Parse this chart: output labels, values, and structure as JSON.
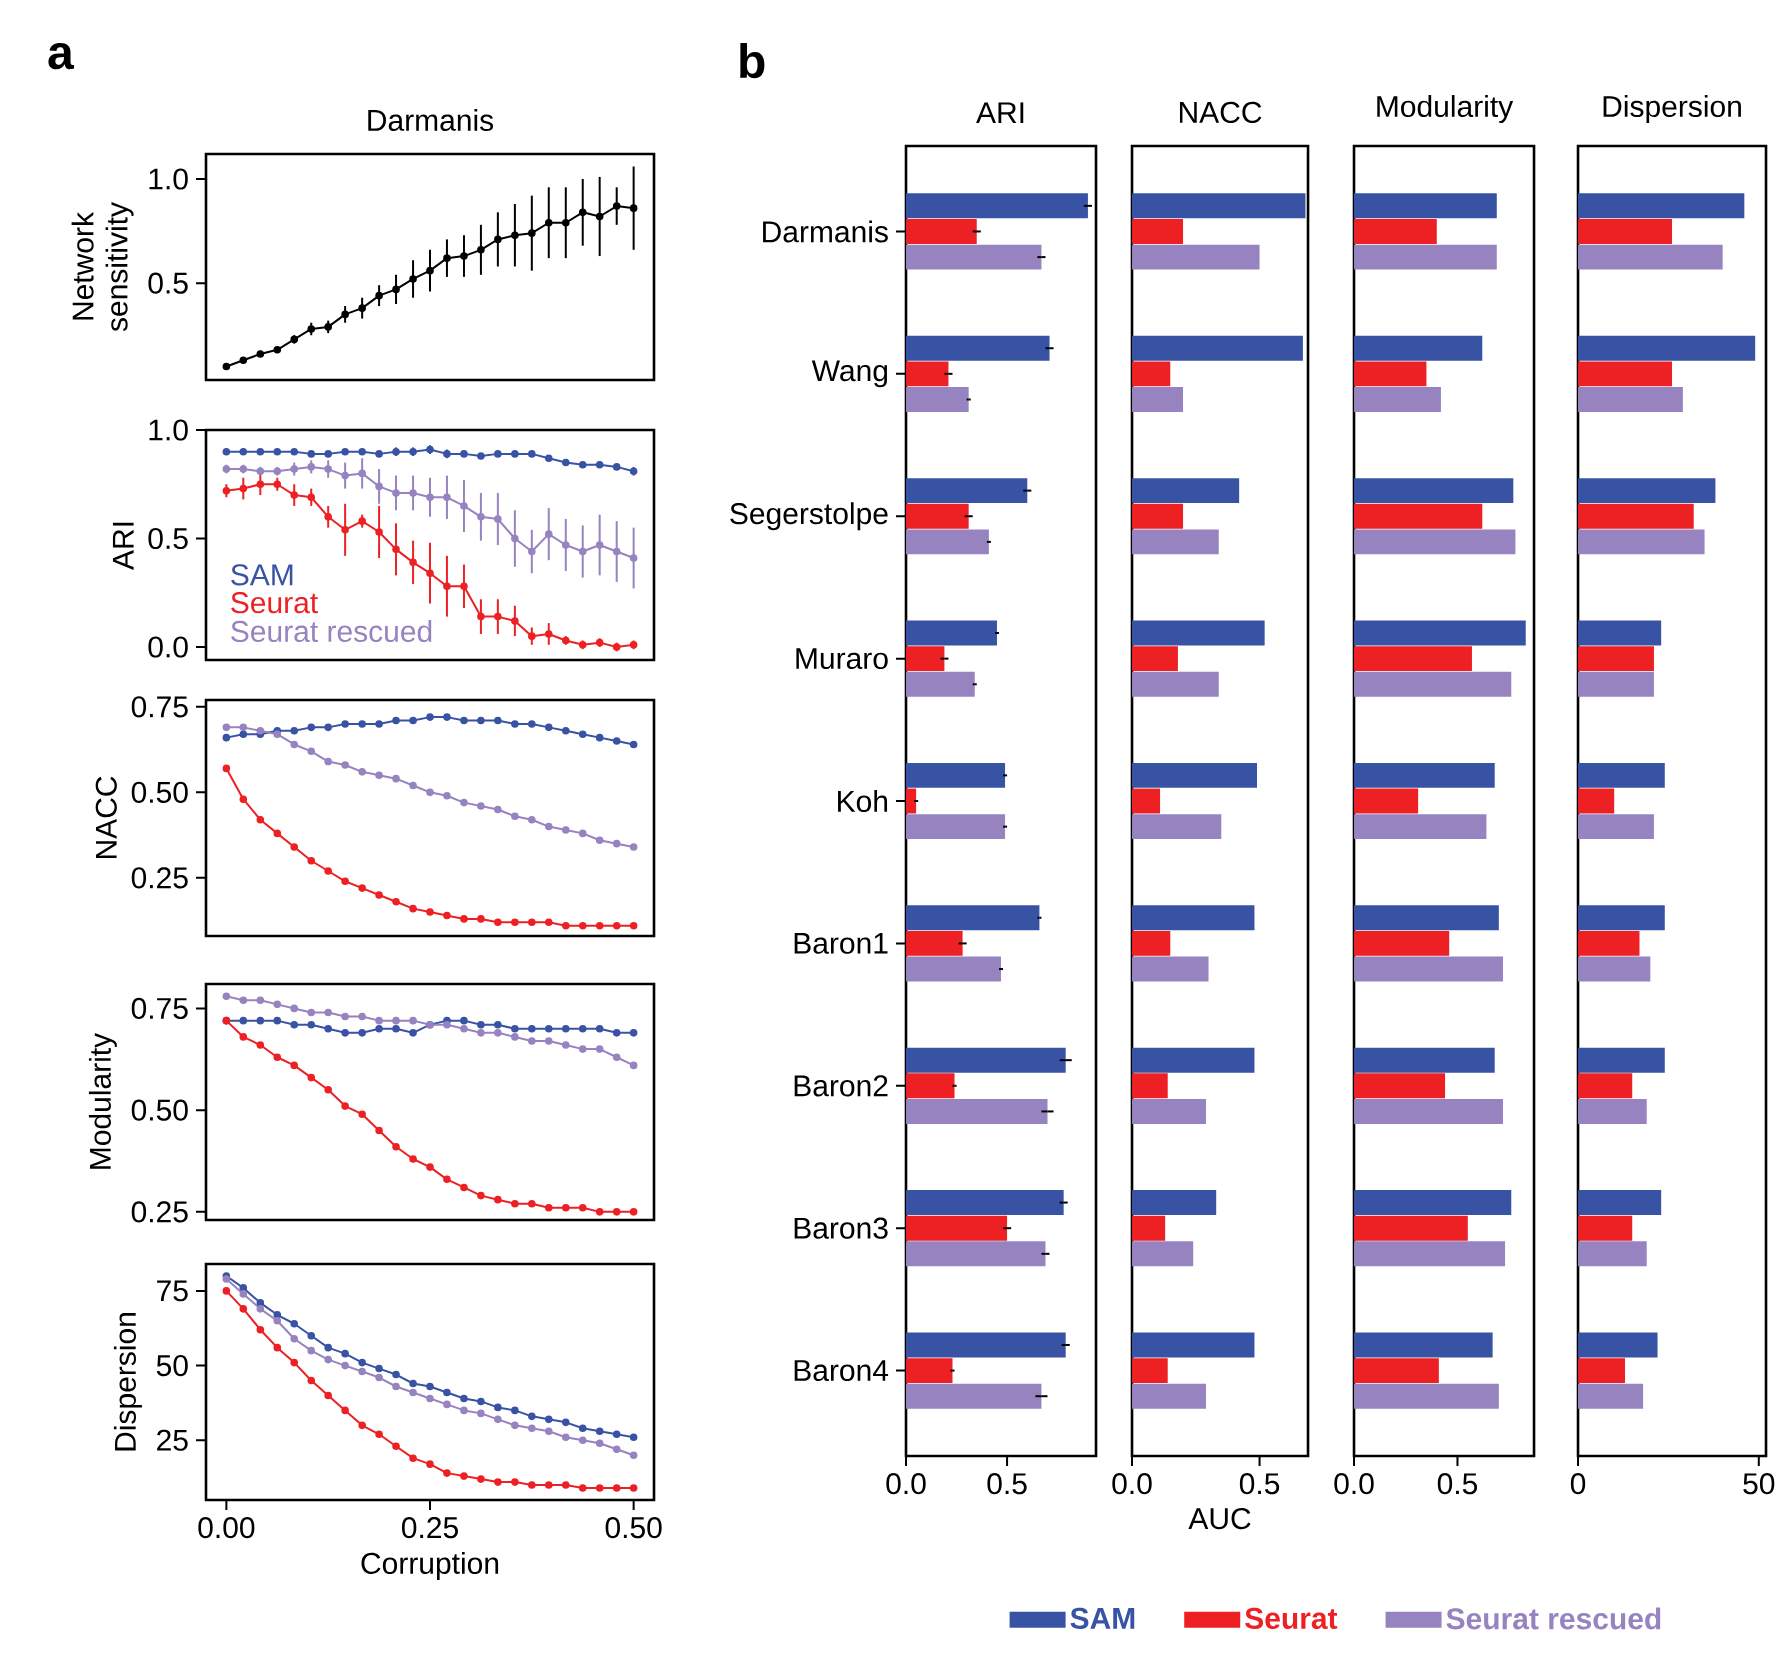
{
  "chart_data": [
    {
      "type": "line",
      "title": "Darmanis",
      "annotations": [
        "a"
      ],
      "ylabel": "Network sensitivity",
      "x": [
        0,
        0.0208,
        0.0417,
        0.0625,
        0.0833,
        0.1042,
        0.125,
        0.1458,
        0.1667,
        0.1875,
        0.2083,
        0.2292,
        0.25,
        0.2708,
        0.2917,
        0.3125,
        0.3333,
        0.3542,
        0.375,
        0.3958,
        0.4167,
        0.4375,
        0.4583,
        0.4792,
        0.5
      ],
      "xlim": [
        -0.025,
        0.525
      ],
      "ylim": [
        0.035,
        1.12
      ],
      "yticks": [
        {
          "value": 0.5,
          "label": "0.5"
        },
        {
          "value": 1.0,
          "label": "1.0"
        }
      ],
      "tick_labels": "y",
      "marker": "circle",
      "series": [
        {
          "color": "#000000",
          "values": [
            0.1,
            0.13,
            0.16,
            0.18,
            0.23,
            0.28,
            0.29,
            0.35,
            0.38,
            0.44,
            0.47,
            0.52,
            0.56,
            0.62,
            0.63,
            0.66,
            0.71,
            0.73,
            0.74,
            0.79,
            0.79,
            0.84,
            0.82,
            0.87,
            0.86
          ],
          "errors": [
            0.01,
            0.01,
            0.01,
            0.015,
            0.02,
            0.03,
            0.03,
            0.04,
            0.05,
            0.05,
            0.07,
            0.09,
            0.1,
            0.09,
            0.1,
            0.12,
            0.13,
            0.15,
            0.18,
            0.17,
            0.17,
            0.16,
            0.19,
            0.09,
            0.2
          ]
        }
      ]
    },
    {
      "type": "line",
      "ylabel": "ARI",
      "x": [
        0,
        0.0208,
        0.0417,
        0.0625,
        0.0833,
        0.1042,
        0.125,
        0.1458,
        0.1667,
        0.1875,
        0.2083,
        0.2292,
        0.25,
        0.2708,
        0.2917,
        0.3125,
        0.3333,
        0.3542,
        0.375,
        0.3958,
        0.4167,
        0.4375,
        0.4583,
        0.4792,
        0.5
      ],
      "xlim": [
        -0.025,
        0.525
      ],
      "ylim": [
        -0.06,
        1.0
      ],
      "yticks": [
        {
          "value": 0,
          "label": "0.0"
        },
        {
          "value": 0.5,
          "label": "0.5"
        },
        {
          "value": 1.0,
          "label": "1.0"
        }
      ],
      "tick_labels": "y",
      "marker": "circle",
      "legend": "bottom left",
      "series": [
        {
          "name": "SAM",
          "color": "#3953a4",
          "values": [
            0.9,
            0.9,
            0.9,
            0.9,
            0.9,
            0.89,
            0.89,
            0.9,
            0.9,
            0.89,
            0.9,
            0.9,
            0.91,
            0.89,
            0.89,
            0.88,
            0.89,
            0.89,
            0.89,
            0.87,
            0.85,
            0.84,
            0.84,
            0.83,
            0.81
          ],
          "errors": [
            0.01,
            0.01,
            0.01,
            0.01,
            0.01,
            0.01,
            0.01,
            0.01,
            0.01,
            0.01,
            0.02,
            0.02,
            0.02,
            0.02,
            0.01,
            0.01,
            0.01,
            0.01,
            0.01,
            0.01,
            0.01,
            0.01,
            0.01,
            0.01,
            0.02
          ]
        },
        {
          "name": "Seurat",
          "color": "#ed2024",
          "values": [
            0.72,
            0.73,
            0.75,
            0.75,
            0.7,
            0.69,
            0.6,
            0.54,
            0.58,
            0.53,
            0.45,
            0.39,
            0.34,
            0.28,
            0.28,
            0.14,
            0.14,
            0.12,
            0.05,
            0.06,
            0.03,
            0.01,
            0.02,
            0.0,
            0.01
          ],
          "errors": [
            0.03,
            0.05,
            0.05,
            0.03,
            0.05,
            0.04,
            0.05,
            0.12,
            0.03,
            0.12,
            0.12,
            0.1,
            0.14,
            0.14,
            0.1,
            0.08,
            0.08,
            0.07,
            0.04,
            0.05,
            0.02,
            0.02,
            0.02,
            0.02,
            0.02
          ]
        },
        {
          "name": "Seurat rescued",
          "color": "#9683c0",
          "values": [
            0.82,
            0.82,
            0.81,
            0.81,
            0.82,
            0.83,
            0.82,
            0.79,
            0.8,
            0.74,
            0.71,
            0.71,
            0.69,
            0.69,
            0.65,
            0.6,
            0.59,
            0.5,
            0.44,
            0.52,
            0.47,
            0.44,
            0.47,
            0.44,
            0.41
          ],
          "errors": [
            0.02,
            0.02,
            0.02,
            0.02,
            0.03,
            0.03,
            0.04,
            0.06,
            0.07,
            0.08,
            0.08,
            0.08,
            0.09,
            0.1,
            0.12,
            0.11,
            0.12,
            0.13,
            0.1,
            0.12,
            0.12,
            0.12,
            0.14,
            0.14,
            0.14
          ]
        }
      ]
    },
    {
      "type": "line",
      "ylabel": "NACC",
      "x": [
        0,
        0.0208,
        0.0417,
        0.0625,
        0.0833,
        0.1042,
        0.125,
        0.1458,
        0.1667,
        0.1875,
        0.2083,
        0.2292,
        0.25,
        0.2708,
        0.2917,
        0.3125,
        0.3333,
        0.3542,
        0.375,
        0.3958,
        0.4167,
        0.4375,
        0.4583,
        0.4792,
        0.5
      ],
      "xlim": [
        -0.025,
        0.525
      ],
      "ylim": [
        0.08,
        0.77
      ],
      "yticks": [
        {
          "value": 0.25,
          "label": "0.25"
        },
        {
          "value": 0.5,
          "label": "0.50"
        },
        {
          "value": 0.75,
          "label": "0.75"
        }
      ],
      "tick_labels": "y",
      "marker": "circle",
      "series": [
        {
          "color": "#3953a4",
          "values": [
            0.66,
            0.67,
            0.67,
            0.68,
            0.68,
            0.69,
            0.69,
            0.7,
            0.7,
            0.7,
            0.71,
            0.71,
            0.72,
            0.72,
            0.71,
            0.71,
            0.71,
            0.7,
            0.7,
            0.69,
            0.68,
            0.67,
            0.66,
            0.65,
            0.64
          ]
        },
        {
          "color": "#ed2024",
          "values": [
            0.57,
            0.48,
            0.42,
            0.38,
            0.34,
            0.3,
            0.27,
            0.24,
            0.22,
            0.2,
            0.18,
            0.16,
            0.15,
            0.14,
            0.13,
            0.13,
            0.12,
            0.12,
            0.12,
            0.12,
            0.11,
            0.11,
            0.11,
            0.11,
            0.11
          ]
        },
        {
          "color": "#9683c0",
          "values": [
            0.69,
            0.69,
            0.68,
            0.67,
            0.64,
            0.62,
            0.59,
            0.58,
            0.56,
            0.55,
            0.54,
            0.52,
            0.5,
            0.49,
            0.47,
            0.46,
            0.45,
            0.43,
            0.42,
            0.4,
            0.39,
            0.38,
            0.36,
            0.35,
            0.34
          ]
        }
      ]
    },
    {
      "type": "line",
      "ylabel": "Modularity",
      "x": [
        0,
        0.0208,
        0.0417,
        0.0625,
        0.0833,
        0.1042,
        0.125,
        0.1458,
        0.1667,
        0.1875,
        0.2083,
        0.2292,
        0.25,
        0.2708,
        0.2917,
        0.3125,
        0.3333,
        0.3542,
        0.375,
        0.3958,
        0.4167,
        0.4375,
        0.4583,
        0.4792,
        0.5
      ],
      "xlim": [
        -0.025,
        0.525
      ],
      "ylim": [
        0.23,
        0.81
      ],
      "yticks": [
        {
          "value": 0.25,
          "label": "0.25"
        },
        {
          "value": 0.5,
          "label": "0.50"
        },
        {
          "value": 0.75,
          "label": "0.75"
        }
      ],
      "tick_labels": "y",
      "marker": "circle",
      "series": [
        {
          "color": "#3953a4",
          "values": [
            0.72,
            0.72,
            0.72,
            0.72,
            0.71,
            0.71,
            0.7,
            0.69,
            0.69,
            0.7,
            0.7,
            0.69,
            0.71,
            0.72,
            0.72,
            0.71,
            0.71,
            0.7,
            0.7,
            0.7,
            0.7,
            0.7,
            0.7,
            0.69,
            0.69
          ]
        },
        {
          "color": "#ed2024",
          "values": [
            0.72,
            0.68,
            0.66,
            0.63,
            0.61,
            0.58,
            0.55,
            0.51,
            0.49,
            0.45,
            0.41,
            0.38,
            0.36,
            0.33,
            0.31,
            0.29,
            0.28,
            0.27,
            0.27,
            0.26,
            0.26,
            0.26,
            0.25,
            0.25,
            0.25
          ]
        },
        {
          "color": "#9683c0",
          "values": [
            0.78,
            0.77,
            0.77,
            0.76,
            0.75,
            0.74,
            0.74,
            0.73,
            0.73,
            0.72,
            0.72,
            0.72,
            0.71,
            0.71,
            0.7,
            0.69,
            0.69,
            0.68,
            0.67,
            0.67,
            0.66,
            0.65,
            0.65,
            0.63,
            0.61
          ]
        }
      ]
    },
    {
      "type": "line",
      "ylabel": "Dispersion",
      "xlabel": "Corruption",
      "x": [
        0,
        0.0208,
        0.0417,
        0.0625,
        0.0833,
        0.1042,
        0.125,
        0.1458,
        0.1667,
        0.1875,
        0.2083,
        0.2292,
        0.25,
        0.2708,
        0.2917,
        0.3125,
        0.3333,
        0.3542,
        0.375,
        0.3958,
        0.4167,
        0.4375,
        0.4583,
        0.4792,
        0.5
      ],
      "xlim": [
        -0.025,
        0.525
      ],
      "xticks": [
        {
          "value": 0,
          "label": "0.00"
        },
        {
          "value": 0.25,
          "label": "0.25"
        },
        {
          "value": 0.5,
          "label": "0.50"
        }
      ],
      "ylim": [
        5,
        84
      ],
      "yticks": [
        25,
        50,
        75
      ],
      "marker": "circle",
      "series": [
        {
          "color": "#3953a4",
          "values": [
            80,
            76,
            71,
            67,
            64,
            60,
            56,
            54,
            51,
            49,
            47,
            44,
            43,
            41,
            39,
            38,
            36,
            35,
            33,
            32,
            31,
            29,
            28,
            27,
            26
          ]
        },
        {
          "color": "#ed2024",
          "values": [
            75,
            69,
            62,
            56,
            51,
            45,
            40,
            35,
            30,
            27,
            23,
            19,
            17,
            14,
            13,
            12,
            11,
            11,
            10,
            10,
            10,
            9,
            9,
            9,
            9
          ]
        },
        {
          "color": "#9683c0",
          "values": [
            79,
            74,
            69,
            65,
            59,
            55,
            52,
            50,
            48,
            46,
            43,
            41,
            39,
            37,
            35,
            34,
            32,
            30,
            29,
            28,
            26,
            25,
            24,
            22,
            20
          ]
        }
      ]
    },
    {
      "type": "bar",
      "orientation": "horizontal",
      "title": "ARI",
      "annotations": [
        "b"
      ],
      "categories": [
        "Darmanis",
        "Wang",
        "Segerstolpe",
        "Muraro",
        "Koh",
        "Baron1",
        "Baron2",
        "Baron3",
        "Baron4"
      ],
      "xlim": [
        0,
        0.94
      ],
      "xticks": [
        {
          "value": 0,
          "label": "0.0"
        },
        {
          "value": 0.5,
          "label": "0.5"
        }
      ],
      "series": [
        {
          "color": "#3953a4",
          "values": [
            0.9,
            0.71,
            0.6,
            0.45,
            0.49,
            0.66,
            0.79,
            0.78,
            0.79
          ],
          "errors": [
            0.02,
            0.02,
            0.02,
            0.01,
            0.01,
            0.01,
            0.03,
            0.02,
            0.02
          ]
        },
        {
          "color": "#ed2024",
          "values": [
            0.35,
            0.21,
            0.31,
            0.19,
            0.05,
            0.28,
            0.24,
            0.5,
            0.23
          ],
          "errors": [
            0.02,
            0.02,
            0.02,
            0.02,
            0.01,
            0.02,
            0.01,
            0.02,
            0.01
          ]
        },
        {
          "color": "#9683c0",
          "values": [
            0.67,
            0.31,
            0.41,
            0.34,
            0.49,
            0.47,
            0.7,
            0.69,
            0.67
          ],
          "errors": [
            0.02,
            0.01,
            0.01,
            0.01,
            0.01,
            0.01,
            0.03,
            0.02,
            0.03
          ]
        }
      ]
    },
    {
      "type": "bar",
      "orientation": "horizontal",
      "title": "NACC",
      "xlabel": "AUC",
      "xlim": [
        0,
        0.69
      ],
      "xticks": [
        {
          "value": 0,
          "label": "0.0"
        },
        {
          "value": 0.5,
          "label": "0.5"
        }
      ],
      "tick_labels": "x",
      "legend": "bottom",
      "series": [
        {
          "name": "SAM",
          "color": "#3953a4",
          "values": [
            0.68,
            0.67,
            0.42,
            0.52,
            0.49,
            0.48,
            0.48,
            0.33,
            0.48
          ]
        },
        {
          "name": "Seurat",
          "color": "#ed2024",
          "values": [
            0.2,
            0.15,
            0.2,
            0.18,
            0.11,
            0.15,
            0.14,
            0.13,
            0.14
          ]
        },
        {
          "name": "Seurat rescued",
          "color": "#9683c0",
          "values": [
            0.5,
            0.2,
            0.34,
            0.34,
            0.35,
            0.3,
            0.29,
            0.24,
            0.29
          ]
        }
      ]
    },
    {
      "type": "bar",
      "orientation": "horizontal",
      "title": "Modularity",
      "xlim": [
        0,
        0.87
      ],
      "xticks": [
        {
          "value": 0,
          "label": "0.0"
        },
        {
          "value": 0.5,
          "label": "0.5"
        }
      ],
      "tick_labels": "x",
      "series": [
        {
          "color": "#3953a4",
          "values": [
            0.69,
            0.62,
            0.77,
            0.83,
            0.68,
            0.7,
            0.68,
            0.76,
            0.67
          ]
        },
        {
          "color": "#ed2024",
          "values": [
            0.4,
            0.35,
            0.62,
            0.57,
            0.31,
            0.46,
            0.44,
            0.55,
            0.41
          ]
        },
        {
          "color": "#9683c0",
          "values": [
            0.69,
            0.42,
            0.78,
            0.76,
            0.64,
            0.72,
            0.72,
            0.73,
            0.7
          ]
        }
      ]
    },
    {
      "type": "bar",
      "orientation": "horizontal",
      "title": "Dispersion",
      "xlim": [
        0,
        52
      ],
      "xticks": [
        0,
        50
      ],
      "tick_labels": "x",
      "series": [
        {
          "color": "#3953a4",
          "values": [
            46,
            49,
            38,
            23,
            24,
            24,
            24,
            23,
            22
          ]
        },
        {
          "color": "#ed2024",
          "values": [
            26,
            26,
            32,
            21,
            10,
            17,
            15,
            15,
            13
          ]
        },
        {
          "color": "#9683c0",
          "values": [
            40,
            29,
            35,
            21,
            21,
            20,
            19,
            19,
            18
          ]
        }
      ]
    }
  ]
}
